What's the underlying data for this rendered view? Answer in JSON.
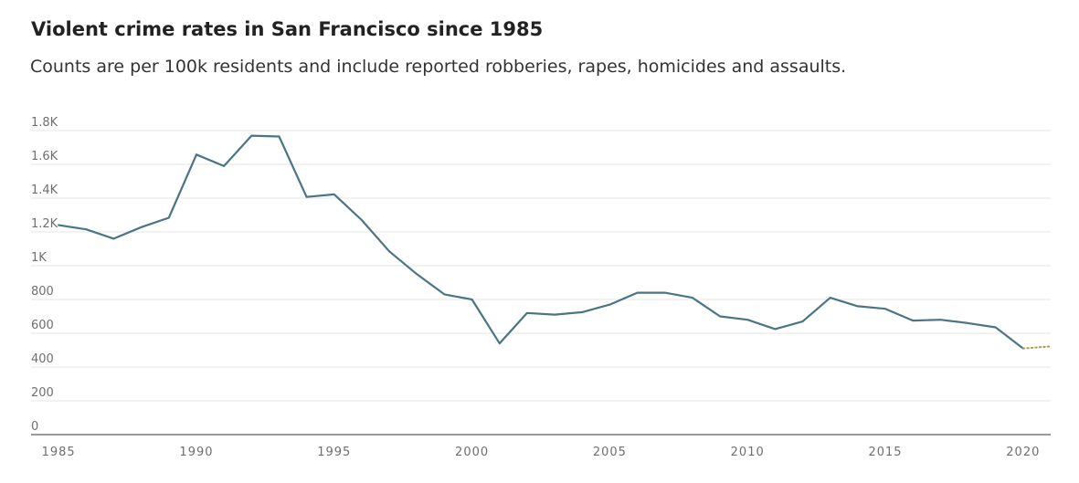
{
  "chart_data": {
    "type": "line",
    "title": "Violent crime rates in San Francisco since 1985",
    "subtitle": "Counts are per 100k residents and include reported robberies, rapes, homicides and assaults.",
    "xlabel": "",
    "ylabel": "",
    "xlim": [
      1984,
      2021
    ],
    "ylim": [
      0,
      1800
    ],
    "x_ticks": [
      1985,
      1990,
      1995,
      2000,
      2005,
      2010,
      2015,
      2020
    ],
    "x_tick_labels": [
      "1985",
      "1990",
      "1995",
      "2000",
      "2005",
      "2010",
      "2015",
      "2020"
    ],
    "y_ticks": [
      0,
      200,
      400,
      600,
      800,
      1000,
      1200,
      1400,
      1600,
      1800
    ],
    "y_tick_labels": [
      "0",
      "200",
      "400",
      "600",
      "800",
      "1K",
      "1.2K",
      "1.4K",
      "1.6K",
      "1.8K"
    ],
    "grid": "horizontal",
    "series": [
      {
        "color": "#4a7583",
        "style": "solid",
        "x": [
          1985,
          1986,
          1987,
          1988,
          1989,
          1990,
          1991,
          1992,
          1993,
          1994,
          1995,
          1996,
          1997,
          1998,
          1999,
          2000,
          2001,
          2002,
          2003,
          2004,
          2005,
          2006,
          2007,
          2008,
          2009,
          2010,
          2011,
          2012,
          2013,
          2014,
          2015,
          2016,
          2017,
          2018,
          2019,
          2020
        ],
        "y": [
          1240,
          1215,
          1160,
          1228,
          1284,
          1658,
          1590,
          1770,
          1765,
          1407,
          1422,
          1270,
          1085,
          950,
          830,
          800,
          540,
          720,
          710,
          725,
          770,
          840,
          840,
          810,
          700,
          680,
          625,
          670,
          810,
          760,
          745,
          675,
          680,
          660,
          635,
          510
        ]
      },
      {
        "color": "#a8a05a",
        "style": "dotted",
        "x": [
          2020,
          2021
        ],
        "y": [
          510,
          522
        ]
      }
    ]
  }
}
